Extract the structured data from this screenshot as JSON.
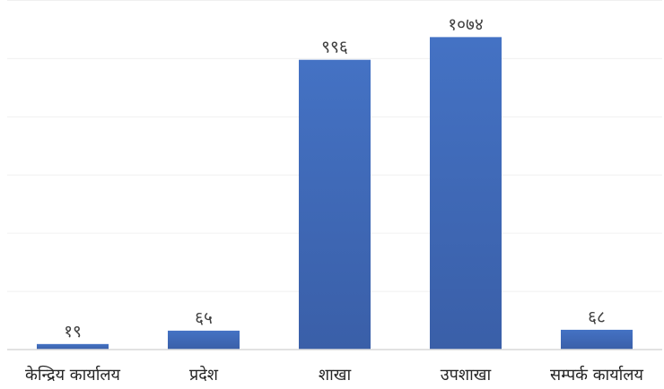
{
  "chart_data": {
    "type": "bar",
    "categories": [
      "केन्द्रिय कार्यालय",
      "प्रदेश",
      "शाखा",
      "उपशाखा",
      "सम्पर्क कार्यालय"
    ],
    "values": [
      19,
      65,
      996,
      1074,
      68
    ],
    "value_labels": [
      "१९",
      "६५",
      "९९६",
      "१०७४",
      "६८"
    ],
    "title": "",
    "xlabel": "",
    "ylabel": "",
    "ylim": [
      0,
      1200
    ],
    "grid": true,
    "legend": "none",
    "bar_color": "#4472C4",
    "bar_color_dark": "#3A5FA8"
  }
}
